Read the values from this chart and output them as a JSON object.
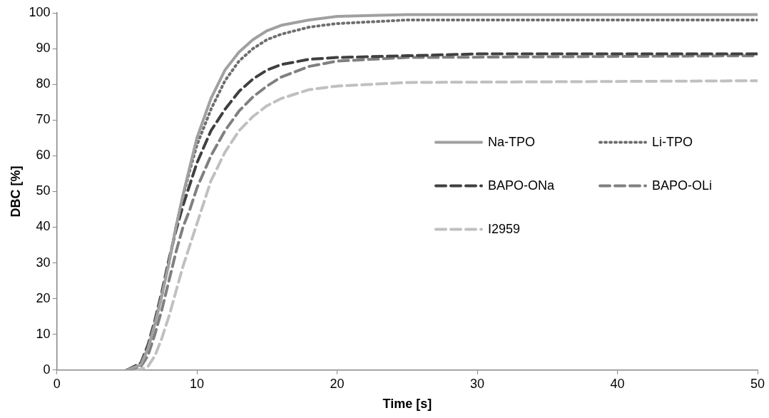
{
  "chart_data": {
    "type": "line",
    "xlabel": "Time [s]",
    "ylabel": "DBC [%]",
    "xlim": [
      0,
      50
    ],
    "xticks": [
      0,
      10,
      20,
      30,
      40,
      50
    ],
    "ylim": [
      0,
      100
    ],
    "yticks": [
      0,
      10,
      20,
      30,
      40,
      50,
      60,
      70,
      80,
      90,
      100
    ],
    "grid": false,
    "legend": "right",
    "marker": "none",
    "series": [
      {
        "name": "Na-TPO",
        "color": "#a0a0a0",
        "line_style": "solid",
        "x": [
          5,
          6,
          6.5,
          7,
          7.5,
          8,
          8.5,
          9,
          9.5,
          10,
          11,
          12,
          13,
          14,
          15,
          16,
          18,
          20,
          25,
          50
        ],
        "values": [
          0,
          1.5,
          6,
          13,
          21,
          30,
          40,
          49,
          57,
          65,
          76,
          84,
          89,
          92.5,
          95,
          96.5,
          98,
          99,
          99.5,
          99.5
        ]
      },
      {
        "name": "Li-TPO",
        "color": "#6e6e6e",
        "line_style": "dotted",
        "x": [
          5,
          6,
          6.5,
          7,
          7.5,
          8,
          8.5,
          9,
          9.5,
          10,
          11,
          12,
          13,
          14,
          15,
          16,
          18,
          20,
          25,
          50
        ],
        "values": [
          0,
          1.5,
          6,
          13,
          21,
          30,
          40,
          48.5,
          56,
          63,
          73,
          81,
          86.5,
          90,
          92.5,
          94,
          96,
          97,
          98,
          98
        ]
      },
      {
        "name": "BAPO-ONa",
        "color": "#404040",
        "line_style": "dashed",
        "x": [
          5,
          6,
          6.5,
          7,
          7.5,
          8,
          8.5,
          9,
          9.5,
          10,
          11,
          12,
          13,
          14,
          15,
          16,
          18,
          20,
          25,
          30,
          50
        ],
        "values": [
          0,
          2,
          7,
          14,
          22,
          31,
          39,
          46,
          52,
          58,
          67,
          73,
          78,
          81.5,
          84,
          85.5,
          87,
          87.5,
          88,
          88.5,
          88.5
        ]
      },
      {
        "name": "BAPO-OLi",
        "color": "#808080",
        "line_style": "dashed",
        "x": [
          5,
          6,
          6.5,
          7,
          7.5,
          8,
          8.5,
          9,
          9.5,
          10,
          11,
          12,
          13,
          14,
          15,
          16,
          18,
          20,
          25,
          50
        ],
        "values": [
          0,
          1,
          4,
          10,
          17,
          25,
          33,
          40,
          45,
          51,
          60,
          67,
          72.5,
          76.5,
          79.5,
          82,
          85,
          86.5,
          87.5,
          88
        ]
      },
      {
        "name": "I2959",
        "color": "#c0c0c0",
        "line_style": "dashed",
        "x": [
          5.5,
          6,
          6.5,
          7,
          7.5,
          8,
          8.5,
          9,
          9.5,
          10,
          11,
          12,
          13,
          14,
          15,
          16,
          18,
          20,
          25,
          50
        ],
        "values": [
          0,
          0.2,
          1,
          4,
          9,
          15,
          22,
          29,
          35,
          41,
          53,
          61,
          67,
          71,
          74,
          76,
          78.5,
          79.5,
          80.5,
          81
        ]
      }
    ]
  }
}
